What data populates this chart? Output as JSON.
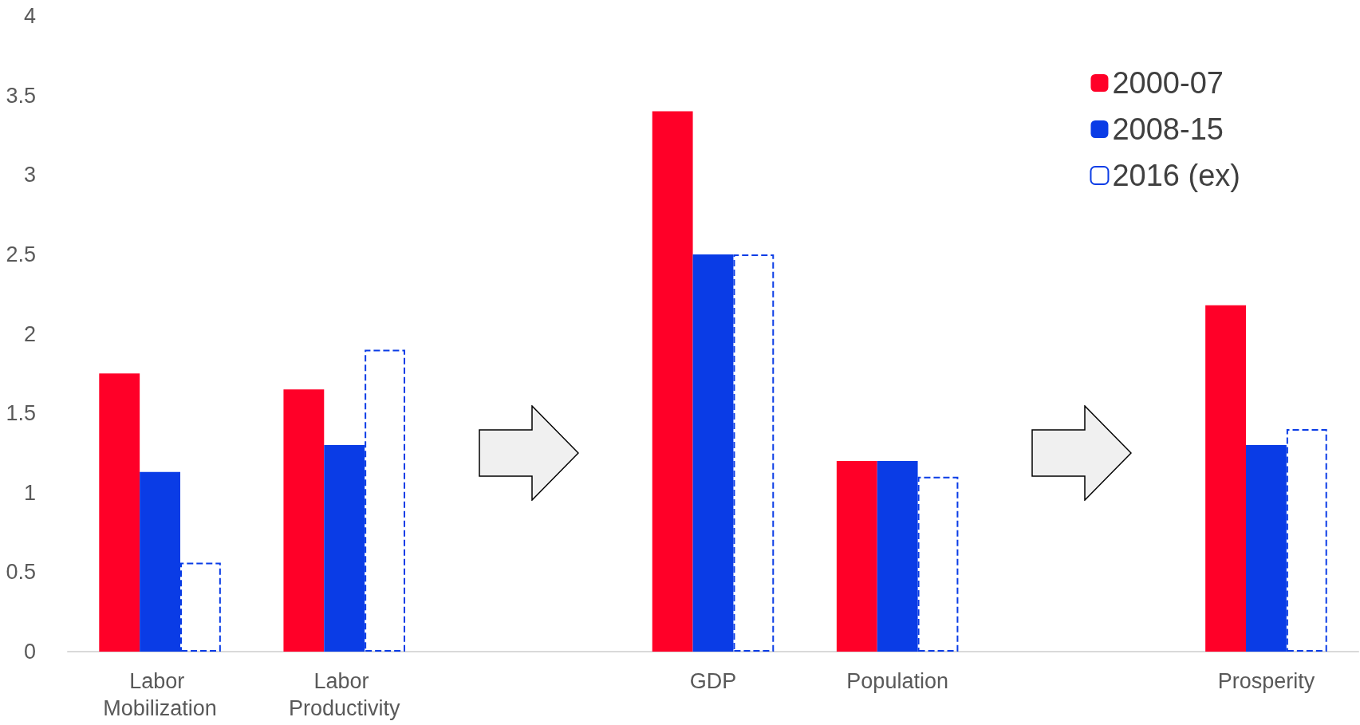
{
  "chart_data": {
    "type": "bar",
    "categories": [
      "Labor Mobilization",
      "Labor Productivity",
      null,
      "GDP",
      "Population",
      null,
      "Prosperity"
    ],
    "series": [
      {
        "name": "2000-07",
        "color": "#ff0028",
        "values": [
          1.75,
          1.65,
          null,
          3.4,
          1.2,
          null,
          2.18
        ]
      },
      {
        "name": "2008-15",
        "color": "#0a3ce6",
        "values": [
          1.13,
          1.3,
          null,
          2.5,
          1.2,
          null,
          1.3
        ]
      },
      {
        "name": "2016 (ex)",
        "color": "#0a3ce6",
        "line_style": "dashed",
        "values": [
          0.56,
          1.9,
          null,
          2.5,
          1.1,
          null,
          1.4
        ]
      }
    ],
    "ylim": [
      0,
      4
    ],
    "yticks": [
      0,
      0.5,
      1,
      1.5,
      2,
      2.5,
      3,
      3.5,
      4
    ],
    "grid": false,
    "legend": "top right"
  }
}
